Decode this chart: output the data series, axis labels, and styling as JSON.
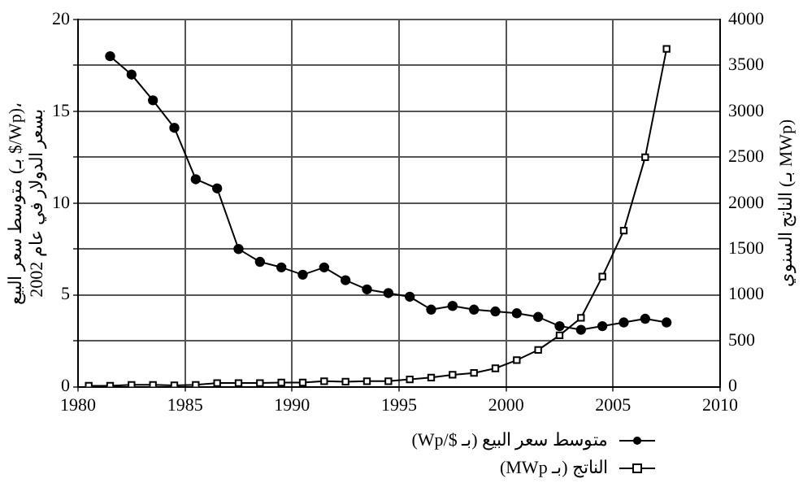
{
  "chart_data": {
    "type": "line",
    "ylabel": "متوسط سعر البيع (بـ $/Wp)،\nبسعر الدولار في عام 2002",
    "y2label": "الناتج السنوي (بـ MWp)",
    "xlim": [
      1980,
      2010
    ],
    "xticks": [
      1980,
      1985,
      1990,
      1995,
      2000,
      2005,
      2010
    ],
    "ylim": [
      0,
      20
    ],
    "yticks": [
      0,
      {
        "value": 2.5,
        "label": null
      },
      5,
      {
        "value": 7.5,
        "label": null
      },
      10,
      {
        "value": 12.5,
        "label": null
      },
      15,
      {
        "value": 17.5,
        "label": null
      },
      20
    ],
    "y2lim": [
      0,
      4000
    ],
    "y2ticks": [
      0,
      500,
      1000,
      1500,
      2000,
      2500,
      3000,
      3500,
      4000
    ],
    "grid": true,
    "legend": "bottom right",
    "series": [
      {
        "name": "متوسط سعر البيع (بـ $/Wp)",
        "color": "#000000",
        "marker": "circle",
        "x": [
          1981.5,
          1982.5,
          1983.5,
          1984.5,
          1985.5,
          1986.5,
          1987.5,
          1988.5,
          1989.5,
          1990.5,
          1991.5,
          1992.5,
          1993.5,
          1994.5,
          1995.5,
          1996.5,
          1997.5,
          1998.5,
          1999.5,
          2000.5,
          2001.5,
          2002.5,
          2003.5,
          2004.5,
          2005.5,
          2006.5,
          2007.5
        ],
        "values": [
          18,
          17,
          15.6,
          14.1,
          11.3,
          10.8,
          7.5,
          6.8,
          6.5,
          6.1,
          6.5,
          5.8,
          5.3,
          5.1,
          4.9,
          4.2,
          4.4,
          4.2,
          4.1,
          4,
          3.8,
          3.3,
          3.1,
          3.3,
          3.5,
          3.7,
          3.5
        ]
      },
      {
        "name": "الناتج (بـ MWp)",
        "color": "#000000",
        "marker": "square",
        "axis": "y2",
        "x": [
          1980.5,
          1981.5,
          1982.5,
          1983.5,
          1984.5,
          1985.5,
          1986.5,
          1987.5,
          1988.5,
          1989.5,
          1990.5,
          1991.5,
          1992.5,
          1993.5,
          1994.5,
          1995.5,
          1996.5,
          1997.5,
          1998.5,
          1999.5,
          2000.5,
          2001.5,
          2002.5,
          2003.5,
          2004.5,
          2005.5,
          2006.5,
          2007.5
        ],
        "values": [
          10,
          10,
          20,
          20,
          15,
          20,
          40,
          40,
          40,
          45,
          45,
          60,
          55,
          60,
          60,
          80,
          100,
          130,
          150,
          200,
          290,
          400,
          560,
          750,
          1200,
          1700,
          2500,
          3680
        ]
      }
    ]
  }
}
